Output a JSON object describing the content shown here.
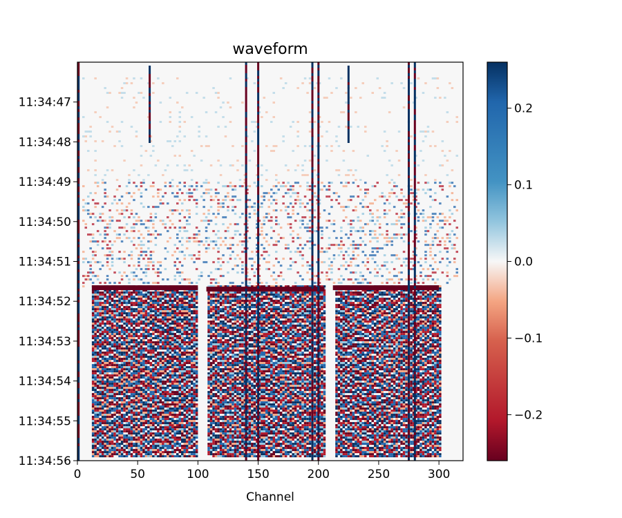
{
  "chart_data": {
    "type": "heatmap",
    "title": "waveform",
    "xlabel": "Channel",
    "ylabel": "",
    "xlim": [
      0,
      320
    ],
    "ylim": [
      "11:34:46",
      "11:34:56"
    ],
    "x_ticks": [
      0,
      50,
      100,
      150,
      200,
      250,
      300
    ],
    "y_ticks": [
      "11:34:47",
      "11:34:48",
      "11:34:49",
      "11:34:50",
      "11:34:51",
      "11:34:52",
      "11:34:53",
      "11:34:54",
      "11:34:55",
      "11:34:56"
    ],
    "y_inverted": true,
    "colormap": "RdBu",
    "color_range": [
      -0.26,
      0.26
    ],
    "colorbar_ticks": [
      {
        "value": 0.2,
        "label": "0.2"
      },
      {
        "value": 0.1,
        "label": "0.1"
      },
      {
        "value": 0.0,
        "label": "0.0"
      },
      {
        "value": -0.1,
        "label": "−0.1"
      },
      {
        "value": -0.2,
        "label": "−0.2"
      }
    ],
    "description": "Channel vs. time waveform image; low-amplitude noise before ~11:34:51.6 and strong alternating red/blue wave arrivals afterwards, with bright vertical stripes at several channels.",
    "event_onset_time": "11:34:51.6",
    "strong_channels": [
      1,
      60,
      140,
      150,
      195,
      200,
      225,
      275,
      280
    ]
  },
  "colors": {
    "red_dark": "#67001f",
    "red": "#b2182b",
    "red_light": "#f4a582",
    "white": "#f7f7f7",
    "blue_light": "#92c5de",
    "blue": "#2166ac",
    "blue_dark": "#053061"
  }
}
